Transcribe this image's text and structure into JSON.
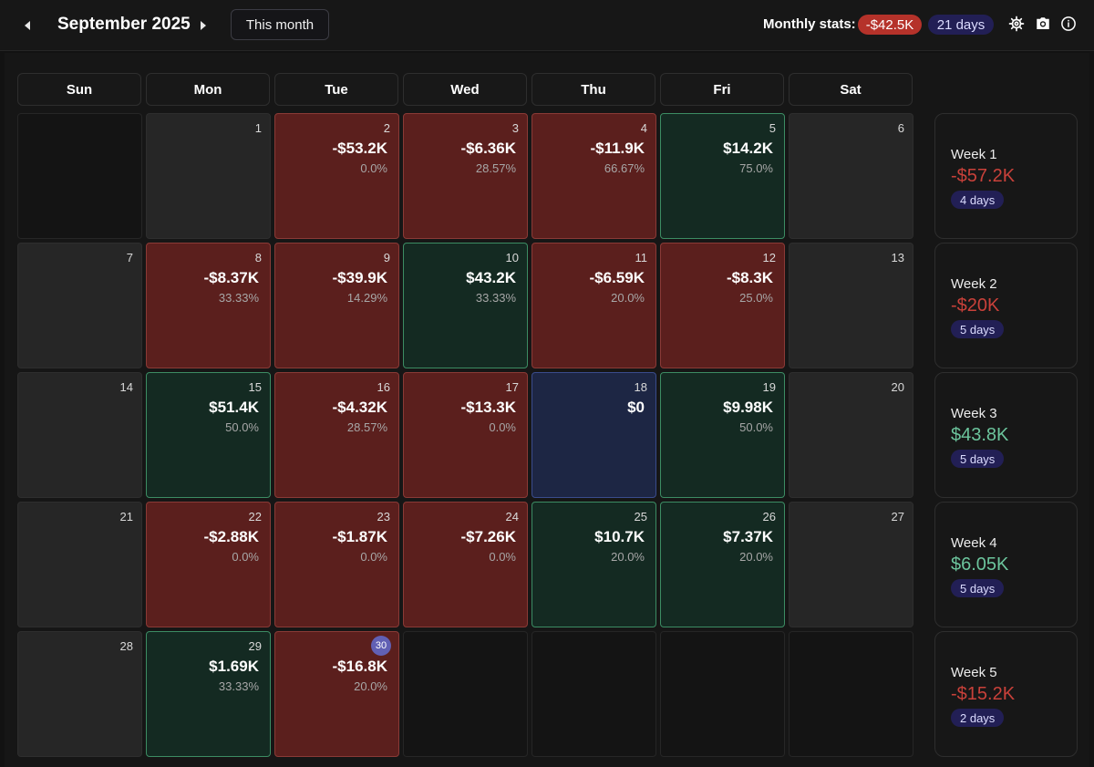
{
  "header": {
    "month_title": "September 2025",
    "this_month_label": "This month",
    "stats_label": "Monthly stats:",
    "stats_pnl": "-$42.5K",
    "stats_days": "21 days",
    "icons": [
      "prev-arrow-icon",
      "next-arrow-icon",
      "gear-icon",
      "camera-icon",
      "info-icon"
    ]
  },
  "colors": {
    "loss": "#5b1f1d",
    "gain": "#142a22",
    "flat": "#1d2644",
    "negative_text": "#c9413a",
    "positive_text": "#6cc59d",
    "badge": "#221f55",
    "today": "#6160b4"
  },
  "weekdays": [
    "Sun",
    "Mon",
    "Tue",
    "Wed",
    "Thu",
    "Fri",
    "Sat"
  ],
  "weeks": [
    {
      "label": "Week 1",
      "total": "-$57.2K",
      "sign": "neg",
      "days": "4 days",
      "cells": [
        {
          "type": "empty"
        },
        {
          "type": "neutral",
          "date": "1"
        },
        {
          "type": "loss",
          "date": "2",
          "amount": "-$53.2K",
          "pct": "0.0%"
        },
        {
          "type": "loss",
          "date": "3",
          "amount": "-$6.36K",
          "pct": "28.57%"
        },
        {
          "type": "loss",
          "date": "4",
          "amount": "-$11.9K",
          "pct": "66.67%"
        },
        {
          "type": "gain",
          "date": "5",
          "amount": "$14.2K",
          "pct": "75.0%"
        },
        {
          "type": "neutral",
          "date": "6"
        }
      ]
    },
    {
      "label": "Week 2",
      "total": "-$20K",
      "sign": "neg",
      "days": "5 days",
      "cells": [
        {
          "type": "neutral",
          "date": "7"
        },
        {
          "type": "loss",
          "date": "8",
          "amount": "-$8.37K",
          "pct": "33.33%"
        },
        {
          "type": "loss",
          "date": "9",
          "amount": "-$39.9K",
          "pct": "14.29%"
        },
        {
          "type": "gain",
          "date": "10",
          "amount": "$43.2K",
          "pct": "33.33%"
        },
        {
          "type": "loss",
          "date": "11",
          "amount": "-$6.59K",
          "pct": "20.0%"
        },
        {
          "type": "loss",
          "date": "12",
          "amount": "-$8.3K",
          "pct": "25.0%"
        },
        {
          "type": "neutral",
          "date": "13"
        }
      ]
    },
    {
      "label": "Week 3",
      "total": "$43.8K",
      "sign": "pos",
      "days": "5 days",
      "cells": [
        {
          "type": "neutral",
          "date": "14"
        },
        {
          "type": "gain",
          "date": "15",
          "amount": "$51.4K",
          "pct": "50.0%"
        },
        {
          "type": "loss",
          "date": "16",
          "amount": "-$4.32K",
          "pct": "28.57%"
        },
        {
          "type": "loss",
          "date": "17",
          "amount": "-$13.3K",
          "pct": "0.0%"
        },
        {
          "type": "flat",
          "date": "18",
          "amount": "$0"
        },
        {
          "type": "gain",
          "date": "19",
          "amount": "$9.98K",
          "pct": "50.0%"
        },
        {
          "type": "neutral",
          "date": "20"
        }
      ]
    },
    {
      "label": "Week 4",
      "total": "$6.05K",
      "sign": "pos",
      "days": "5 days",
      "cells": [
        {
          "type": "neutral",
          "date": "21"
        },
        {
          "type": "loss",
          "date": "22",
          "amount": "-$2.88K",
          "pct": "0.0%"
        },
        {
          "type": "loss",
          "date": "23",
          "amount": "-$1.87K",
          "pct": "0.0%"
        },
        {
          "type": "loss",
          "date": "24",
          "amount": "-$7.26K",
          "pct": "0.0%"
        },
        {
          "type": "gain",
          "date": "25",
          "amount": "$10.7K",
          "pct": "20.0%"
        },
        {
          "type": "gain",
          "date": "26",
          "amount": "$7.37K",
          "pct": "20.0%"
        },
        {
          "type": "neutral",
          "date": "27"
        }
      ]
    },
    {
      "label": "Week 5",
      "total": "-$15.2K",
      "sign": "neg",
      "days": "2 days",
      "cells": [
        {
          "type": "neutral",
          "date": "28"
        },
        {
          "type": "gain",
          "date": "29",
          "amount": "$1.69K",
          "pct": "33.33%"
        },
        {
          "type": "loss",
          "date": "30",
          "amount": "-$16.8K",
          "pct": "20.0%",
          "today": true
        },
        {
          "type": "empty"
        },
        {
          "type": "empty"
        },
        {
          "type": "empty"
        },
        {
          "type": "empty"
        }
      ]
    }
  ]
}
